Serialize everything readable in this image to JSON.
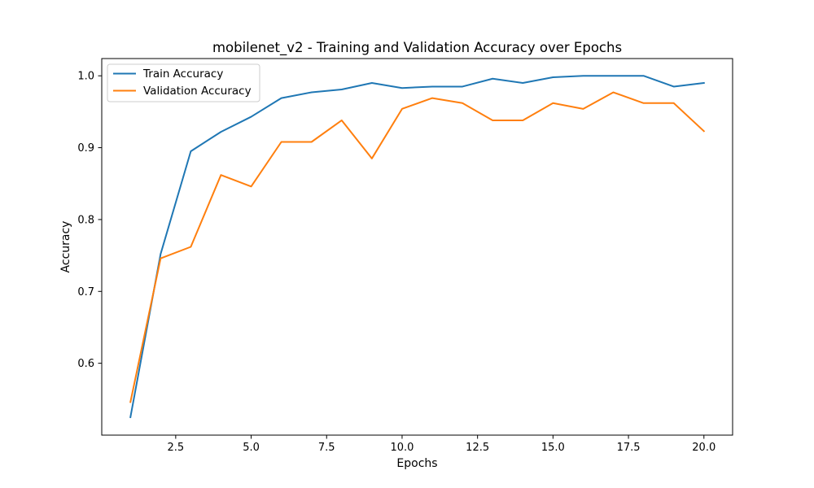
{
  "chart_data": {
    "type": "line",
    "title": "mobilenet_v2 - Training and Validation Accuracy over Epochs",
    "xlabel": "Epochs",
    "ylabel": "Accuracy",
    "xlim": [
      0.05,
      20.95
    ],
    "ylim": [
      0.5,
      1.024
    ],
    "xticks": [
      2.5,
      5.0,
      7.5,
      10.0,
      12.5,
      15.0,
      17.5,
      20.0
    ],
    "xtick_labels": [
      "2.5",
      "5.0",
      "7.5",
      "10.0",
      "12.5",
      "15.0",
      "17.5",
      "20.0"
    ],
    "yticks": [
      0.6,
      0.7,
      0.8,
      0.9,
      1.0
    ],
    "ytick_labels": [
      "0.6",
      "0.7",
      "0.8",
      "0.9",
      "1.0"
    ],
    "grid": false,
    "legend": "upper-left",
    "x": [
      1,
      2,
      3,
      4,
      5,
      6,
      7,
      8,
      9,
      10,
      11,
      12,
      13,
      14,
      15,
      16,
      17,
      18,
      19,
      20
    ],
    "series": [
      {
        "name": "Train Accuracy",
        "color": "#1f77b4",
        "values": [
          0.525,
          0.752,
          0.895,
          0.922,
          0.943,
          0.969,
          0.977,
          0.981,
          0.99,
          0.983,
          0.985,
          0.985,
          0.996,
          0.99,
          0.998,
          1.0,
          1.0,
          1.0,
          0.985,
          0.99
        ]
      },
      {
        "name": "Validation Accuracy",
        "color": "#ff7f0e",
        "values": [
          0.546,
          0.746,
          0.762,
          0.862,
          0.846,
          0.908,
          0.908,
          0.938,
          0.885,
          0.954,
          0.969,
          0.962,
          0.938,
          0.938,
          0.962,
          0.954,
          0.977,
          0.962,
          0.962,
          0.923
        ]
      }
    ]
  }
}
